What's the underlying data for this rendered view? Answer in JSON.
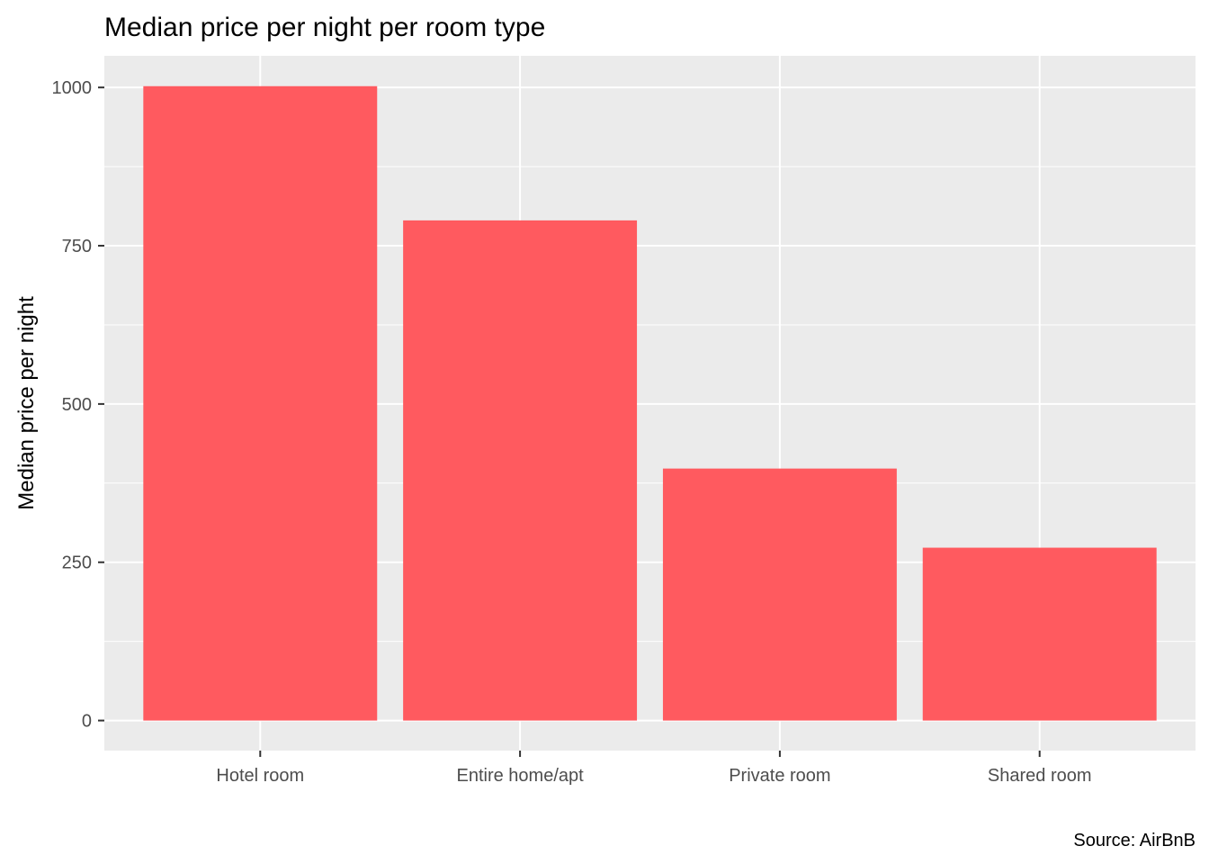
{
  "chart_data": {
    "type": "bar",
    "title": "Median price per night per room type",
    "xlabel": "",
    "ylabel": "Median price per night",
    "caption": "Source: AirBnB",
    "categories": [
      "Hotel room",
      "Entire home/apt",
      "Private room",
      "Shared room"
    ],
    "values": [
      1002,
      790,
      398,
      273
    ],
    "ylim": [
      -47.5,
      1050
    ],
    "y_ticks": [
      0,
      250,
      500,
      750,
      1000
    ],
    "y_tick_labels": [
      "0",
      "250",
      "500",
      "750",
      "1000"
    ],
    "grid": true,
    "legend": "none",
    "colors": {
      "bar": "#FF5A5F",
      "panel": "#EBEBEB",
      "grid_major": "#FFFFFF",
      "tick": "#333333",
      "tick_label": "#4D4D4D"
    }
  }
}
